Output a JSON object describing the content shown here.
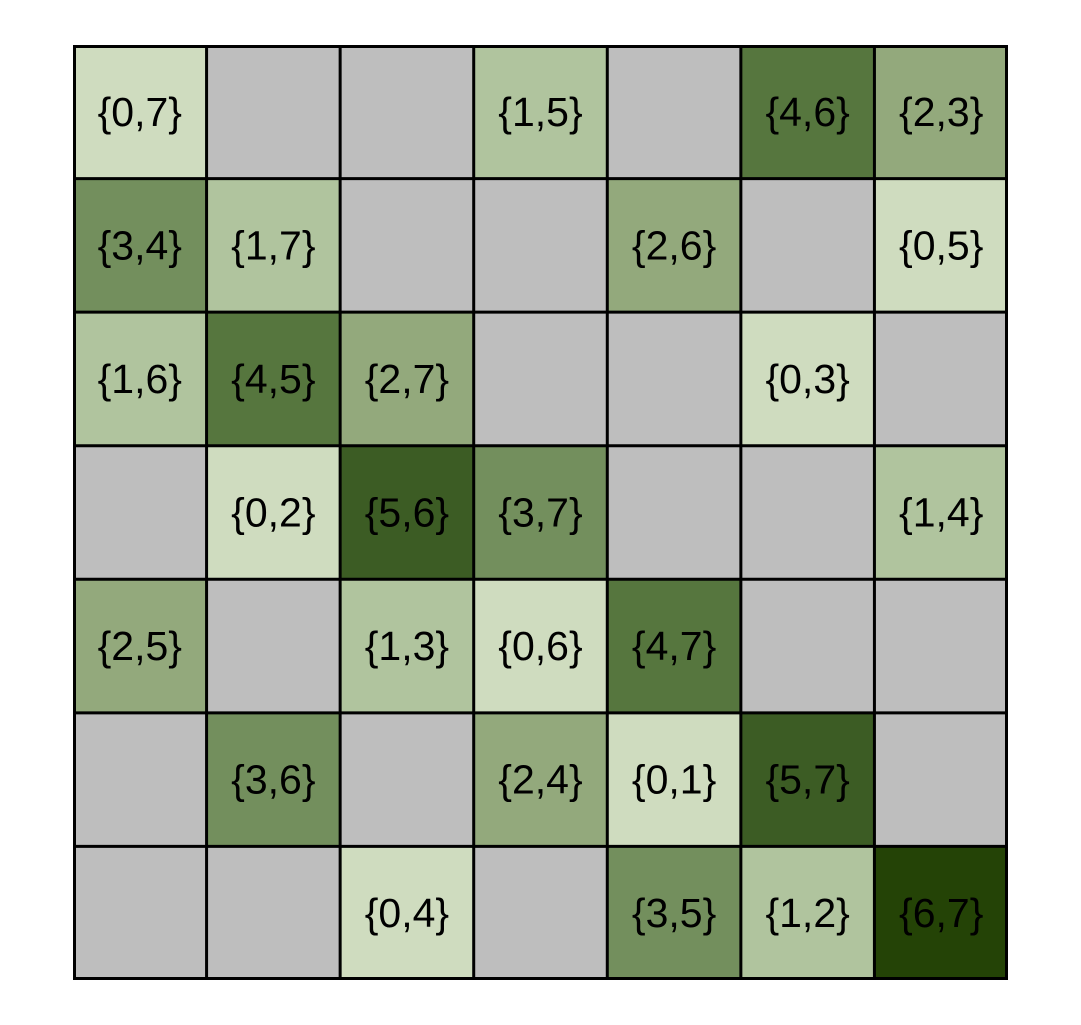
{
  "grid": {
    "rows": 7,
    "cols": 7,
    "palette": {
      "empty": "#bebebe",
      "level0": "#cfdcbf",
      "level1": "#b0c49e",
      "level2": "#93a97c",
      "level3": "#738f5d",
      "level4": "#56763e",
      "level5": "#3c5c24",
      "level6": "#244306",
      "border": "#000000"
    },
    "cells": [
      [
        {
          "label": "{0,7}",
          "level": 0
        },
        null,
        null,
        {
          "label": "{1,5}",
          "level": 1
        },
        null,
        {
          "label": "{4,6}",
          "level": 4
        },
        {
          "label": "{2,3}",
          "level": 2
        }
      ],
      [
        {
          "label": "{3,4}",
          "level": 3
        },
        {
          "label": "{1,7}",
          "level": 1
        },
        null,
        null,
        {
          "label": "{2,6}",
          "level": 2
        },
        null,
        {
          "label": "{0,5}",
          "level": 0
        }
      ],
      [
        {
          "label": "{1,6}",
          "level": 1
        },
        {
          "label": "{4,5}",
          "level": 4
        },
        {
          "label": "{2,7}",
          "level": 2
        },
        null,
        null,
        {
          "label": "{0,3}",
          "level": 0
        },
        null
      ],
      [
        null,
        {
          "label": "{0,2}",
          "level": 0
        },
        {
          "label": "{5,6}",
          "level": 5
        },
        {
          "label": "{3,7}",
          "level": 3
        },
        null,
        null,
        {
          "label": "{1,4}",
          "level": 1
        }
      ],
      [
        {
          "label": "{2,5}",
          "level": 2
        },
        null,
        {
          "label": "{1,3}",
          "level": 1
        },
        {
          "label": "{0,6}",
          "level": 0
        },
        {
          "label": "{4,7}",
          "level": 4
        },
        null,
        null
      ],
      [
        null,
        {
          "label": "{3,6}",
          "level": 3
        },
        null,
        {
          "label": "{2,4}",
          "level": 2
        },
        {
          "label": "{0,1}",
          "level": 0
        },
        {
          "label": "{5,7}",
          "level": 5
        },
        null
      ],
      [
        null,
        null,
        {
          "label": "{0,4}",
          "level": 0
        },
        null,
        {
          "label": "{3,5}",
          "level": 3
        },
        {
          "label": "{1,2}",
          "level": 1
        },
        {
          "label": "{6,7}",
          "level": 6
        }
      ]
    ]
  }
}
